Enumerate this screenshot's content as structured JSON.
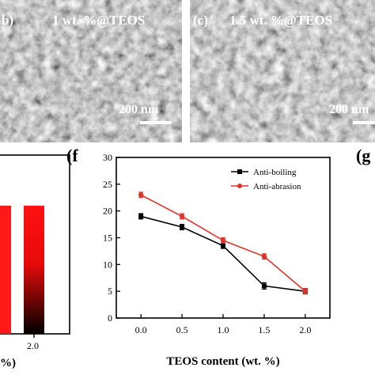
{
  "sem_panels": [
    {
      "tag": "b)",
      "caption": "1 wt. %@TEOS",
      "scale": "200 nm"
    },
    {
      "tag": "(c)",
      "caption": "1.5 wt. %@TEOS",
      "scale": "200 nm"
    }
  ],
  "panel_e": {
    "tick_label": "2.0",
    "axis_fragment": "%)"
  },
  "panel_f": {
    "tag": "(f"
  },
  "panel_g": {
    "tag": "(g"
  },
  "chart_data": {
    "type": "line",
    "xlabel": "TEOS content (wt. %)",
    "ylabel": "",
    "xlim": [
      -0.3,
      2.3
    ],
    "ylim": [
      0,
      30
    ],
    "xticks": [
      "0.0",
      "0.5",
      "1.0",
      "1.5",
      "2.0"
    ],
    "yticks": [
      "0",
      "5",
      "10",
      "15",
      "20",
      "25",
      "30"
    ],
    "x": [
      0.0,
      0.5,
      1.0,
      1.5,
      2.0
    ],
    "legend_position": "top-right",
    "series": [
      {
        "name": "Anti-boiling",
        "color": "#000000",
        "marker": "square",
        "values": [
          19,
          17,
          13.5,
          6,
          5
        ],
        "errors": [
          0.5,
          0.5,
          0.5,
          0.6,
          0.5
        ]
      },
      {
        "name": "Anti-abrasion",
        "color": "#e0312a",
        "marker": "circle",
        "values": [
          23,
          19,
          14.5,
          11.5,
          5
        ],
        "errors": [
          0.5,
          0.5,
          0.5,
          0.5,
          0.5
        ]
      }
    ]
  }
}
